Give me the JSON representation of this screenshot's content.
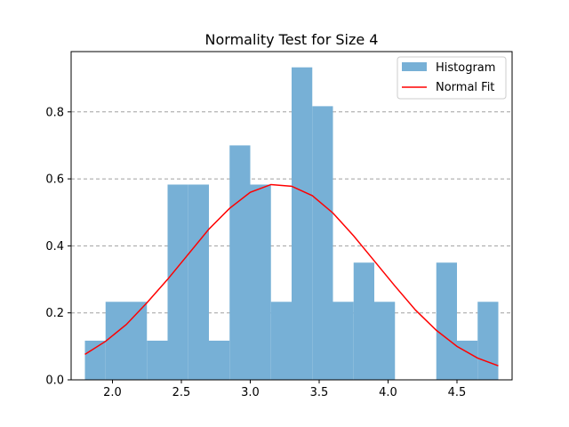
{
  "chart_data": {
    "type": "bar",
    "title": "Normality Test for Size 4",
    "xlabel": "",
    "ylabel": "",
    "xlim": [
      1.7,
      4.9
    ],
    "ylim": [
      0,
      0.98
    ],
    "xticks": [
      "2.0",
      "2.5",
      "3.0",
      "3.5",
      "4.0",
      "4.5"
    ],
    "yticks": [
      "0.0",
      "0.2",
      "0.4",
      "0.6",
      "0.8"
    ],
    "grid": "horizontal dashed",
    "legend_placement": "top-right",
    "colors": {
      "histogram": "#77b0d6",
      "normal_fit": "#ff0000",
      "grid": "#a0a0a0"
    },
    "series": [
      {
        "name": "Histogram",
        "type": "bar",
        "bin_edges": [
          1.8,
          1.95,
          2.1,
          2.25,
          2.4,
          2.55,
          2.7,
          2.85,
          3.0,
          3.15,
          3.3,
          3.45,
          3.6,
          3.75,
          3.9,
          4.05,
          4.2,
          4.35,
          4.5,
          4.65,
          4.8
        ],
        "values": [
          0.117,
          0.233,
          0.233,
          0.117,
          0.583,
          0.583,
          0.117,
          0.7,
          0.583,
          0.233,
          0.933,
          0.817,
          0.233,
          0.35,
          0.233,
          0.0,
          0.0,
          0.35,
          0.117,
          0.233
        ]
      },
      {
        "name": "Normal Fit",
        "type": "line",
        "x": [
          1.8,
          1.95,
          2.1,
          2.25,
          2.4,
          2.55,
          2.7,
          2.85,
          3.0,
          3.15,
          3.3,
          3.45,
          3.6,
          3.75,
          3.9,
          4.05,
          4.2,
          4.35,
          4.5,
          4.65,
          4.8
        ],
        "y": [
          0.076,
          0.115,
          0.165,
          0.23,
          0.3,
          0.375,
          0.45,
          0.512,
          0.56,
          0.583,
          0.578,
          0.55,
          0.498,
          0.43,
          0.355,
          0.28,
          0.208,
          0.148,
          0.1,
          0.065,
          0.042
        ]
      }
    ]
  }
}
